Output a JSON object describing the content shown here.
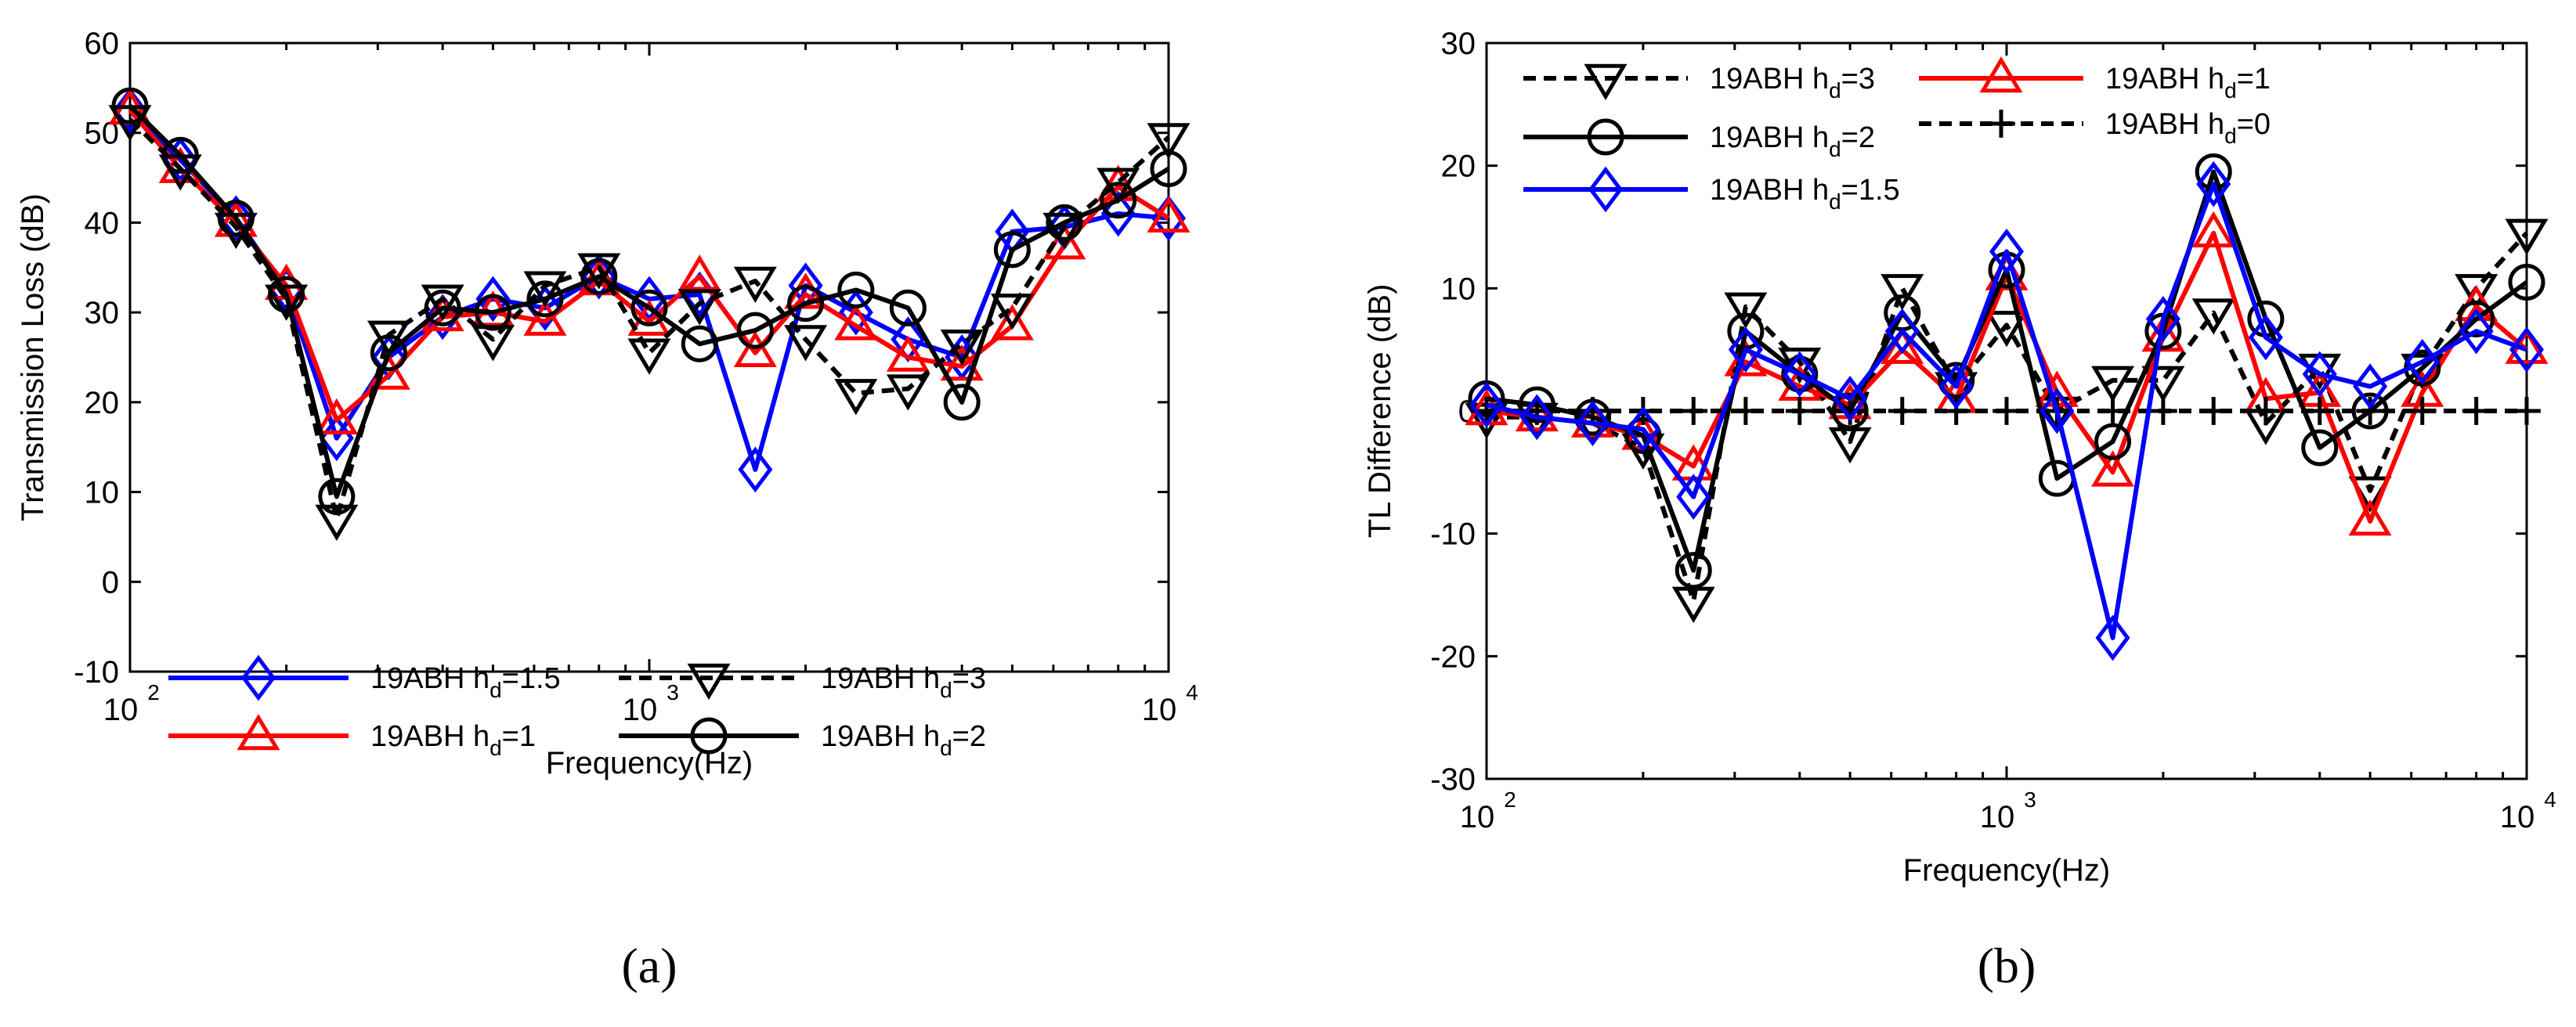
{
  "colors": {
    "blue": "#0000ff",
    "red": "#ff0000",
    "black": "#000000"
  },
  "chart_data": [
    {
      "type": "line",
      "panel_label": "(a)",
      "xscale": "log",
      "xlabel": "Frequency(Hz)",
      "ylabel": "Transmission Loss (dB)",
      "xlim": [
        100,
        10000
      ],
      "ylim": [
        -10,
        60
      ],
      "yticks": [
        -10,
        0,
        10,
        20,
        30,
        40,
        50,
        60
      ],
      "xticks": [
        {
          "value": 100,
          "base": "10",
          "exp": "2"
        },
        {
          "value": 1000,
          "base": "10",
          "exp": "3"
        },
        {
          "value": 10000,
          "base": "10",
          "exp": "4"
        }
      ],
      "legend_position": "bottom",
      "x": [
        100,
        125,
        160,
        200,
        250,
        315,
        400,
        500,
        630,
        800,
        1000,
        1250,
        1600,
        2000,
        2500,
        3150,
        4000,
        5000,
        6300,
        8000,
        10000
      ],
      "series": [
        {
          "name": "19ABH h",
          "sub": "d",
          "suffix": "=1.5",
          "color": "blue",
          "marker": "diamond",
          "dash": false,
          "values": [
            52.5,
            47,
            40.5,
            32.5,
            16,
            25,
            29.5,
            31.5,
            30.5,
            34,
            31.5,
            32,
            12.5,
            33,
            30,
            27,
            25,
            39,
            39.5,
            41,
            40.5
          ]
        },
        {
          "name": "19ABH h",
          "sub": "d",
          "suffix": "=1",
          "color": "red",
          "marker": "triangle-up",
          "dash": false,
          "values": [
            52.5,
            46,
            40,
            33,
            18,
            23,
            29.5,
            30,
            29,
            33.5,
            29,
            34,
            25.5,
            32,
            28.5,
            25,
            24,
            28.5,
            37.5,
            44,
            40.5
          ]
        },
        {
          "name": "19ABH h",
          "sub": "d",
          "suffix": "=3",
          "color": "black",
          "marker": "triangle-down",
          "dash": true,
          "values": [
            51.5,
            46,
            39.5,
            31.5,
            7,
            27.5,
            31.5,
            27,
            33,
            35,
            25.5,
            31,
            33.5,
            27,
            21,
            21.5,
            26.5,
            30.5,
            39.5,
            44.5,
            49.5
          ]
        },
        {
          "name": "19ABH h",
          "sub": "d",
          "suffix": "=2",
          "color": "black",
          "marker": "circle",
          "dash": false,
          "values": [
            53,
            47.5,
            40.5,
            32,
            9.5,
            25.5,
            30.5,
            30,
            31.5,
            34,
            30.5,
            26.5,
            28,
            31,
            32.5,
            30.5,
            20,
            37,
            40,
            42.5,
            46
          ]
        }
      ]
    },
    {
      "type": "line",
      "panel_label": "(b)",
      "xscale": "log",
      "xlabel": "Frequency(Hz)",
      "ylabel": "TL Difference (dB)",
      "xlim": [
        100,
        10000
      ],
      "ylim": [
        -30,
        30
      ],
      "yticks": [
        -30,
        -20,
        -10,
        0,
        10,
        20,
        30
      ],
      "xticks": [
        {
          "value": 100,
          "base": "10",
          "exp": "2"
        },
        {
          "value": 1000,
          "base": "10",
          "exp": "3"
        },
        {
          "value": 10000,
          "base": "10",
          "exp": "4"
        }
      ],
      "legend_position": "top",
      "x": [
        100,
        125,
        160,
        200,
        250,
        315,
        400,
        500,
        630,
        800,
        1000,
        1250,
        1600,
        2000,
        2500,
        3150,
        4000,
        5000,
        6300,
        8000,
        10000
      ],
      "series": [
        {
          "name": "19ABH h",
          "sub": "d",
          "suffix": "=3",
          "color": "black",
          "marker": "triangle-down",
          "dash": true,
          "values": [
            -0.5,
            -0.5,
            -1,
            -3,
            -15.5,
            8.5,
            4,
            -2.5,
            10,
            2,
            7,
            0,
            2.5,
            2.5,
            8,
            -1,
            3.5,
            -6.5,
            3.5,
            10,
            14.5
          ]
        },
        {
          "name": "19ABH h",
          "sub": "d",
          "suffix": "=1",
          "color": "red",
          "marker": "triangle-up",
          "dash": false,
          "values": [
            0,
            -0.5,
            -1,
            -2,
            -4.5,
            4,
            2,
            0.5,
            5,
            1,
            11,
            1.5,
            -5,
            6,
            14.5,
            1,
            1.5,
            -9,
            1.5,
            8.5,
            5
          ]
        },
        {
          "name": "19ABH h",
          "sub": "d",
          "suffix": "=2",
          "color": "black",
          "marker": "circle",
          "dash": false,
          "values": [
            1,
            0.5,
            -0.5,
            -2,
            -13,
            6.5,
            3,
            0,
            8,
            2.5,
            11.5,
            -5.5,
            -2.5,
            6.5,
            19.5,
            7.5,
            -3,
            0,
            3.5,
            7.5,
            10.5
          ]
        },
        {
          "name": "19ABH h",
          "sub": "d",
          "suffix": "=0",
          "color": "black",
          "marker": "plus",
          "dash": true,
          "values": [
            0,
            0,
            0,
            0,
            0,
            0,
            0,
            0,
            0,
            0,
            0,
            0,
            0,
            0,
            0,
            0,
            0,
            0,
            0,
            0,
            0
          ]
        },
        {
          "name": "19ABH h",
          "sub": "d",
          "suffix": "=1.5",
          "color": "blue",
          "marker": "diamond",
          "dash": false,
          "values": [
            0.5,
            -0.5,
            -1,
            -1.5,
            -7,
            5,
            3,
            1,
            6.5,
            2,
            13,
            0,
            -18.5,
            7.5,
            18.5,
            6,
            3,
            2,
            4,
            6.5,
            5
          ]
        }
      ]
    }
  ]
}
